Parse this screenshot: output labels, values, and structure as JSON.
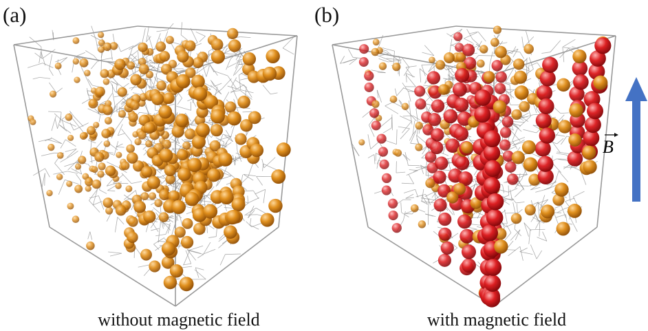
{
  "panels": [
    {
      "label": "(a)",
      "caption": "without magnetic field"
    },
    {
      "label": "(b)",
      "caption": "with magnetic field"
    }
  ],
  "field_label": "B"
}
